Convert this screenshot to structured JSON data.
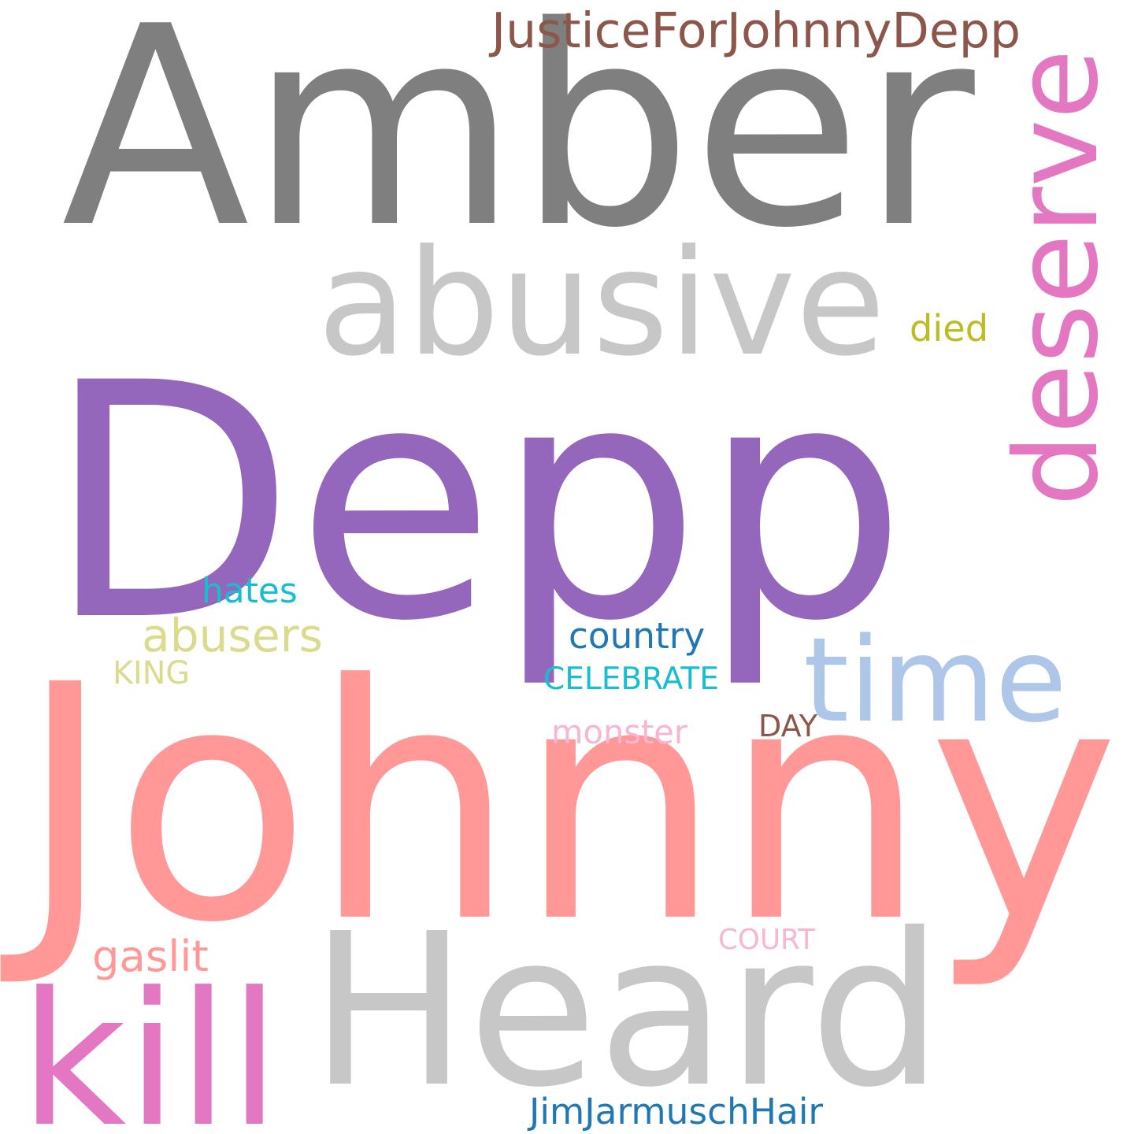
{
  "words": [
    {
      "id": "amber",
      "text": "Amber",
      "color": "#7f7f7f"
    },
    {
      "id": "depp",
      "text": "Depp",
      "color": "#9467bd"
    },
    {
      "id": "johnny",
      "text": "Johnny",
      "color": "#ff9896"
    },
    {
      "id": "heard",
      "text": "Heard",
      "color": "#c7c7c7"
    },
    {
      "id": "abusive",
      "text": "abusive",
      "color": "#c7c7c7"
    },
    {
      "id": "deserve",
      "text": "deserve",
      "color": "#e377c2"
    },
    {
      "id": "justice",
      "text": "JusticeForJohnnyDepp",
      "color": "#8c564b"
    },
    {
      "id": "time",
      "text": "time",
      "color": "#aec7e8"
    },
    {
      "id": "kill",
      "text": "kill",
      "color": "#e377c2"
    },
    {
      "id": "abusers",
      "text": "abusers",
      "color": "#dbdb8d"
    },
    {
      "id": "hates",
      "text": "hates",
      "color": "#17becf"
    },
    {
      "id": "country",
      "text": "country",
      "color": "#1f77b4"
    },
    {
      "id": "celebrate",
      "text": "CELEBRATE",
      "color": "#17becf"
    },
    {
      "id": "king",
      "text": "KING",
      "color": "#dbdb8d"
    },
    {
      "id": "died",
      "text": "died",
      "color": "#bcbd22"
    },
    {
      "id": "monster",
      "text": "monster",
      "color": "#f7b6d2"
    },
    {
      "id": "day",
      "text": "DAY",
      "color": "#8c564b"
    },
    {
      "id": "court",
      "text": "COURT",
      "color": "#f7b6d2"
    },
    {
      "id": "gaslit",
      "text": "gaslit",
      "color": "#ff9896"
    },
    {
      "id": "jimjarmusch",
      "text": "JimJarmuschHair",
      "color": "#1f77b4"
    }
  ]
}
